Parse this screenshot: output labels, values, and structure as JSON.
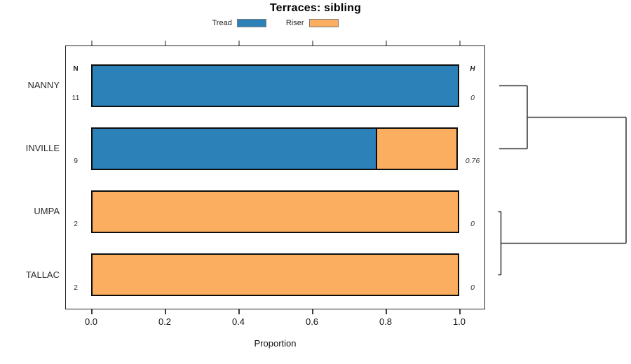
{
  "title": "Terraces: sibling",
  "legend": [
    {
      "label": "Tread",
      "color": "#2c81b9"
    },
    {
      "label": "Riser",
      "color": "#fbad60"
    }
  ],
  "axis": {
    "xlabel": "Proportion",
    "ticks": [
      "0.0",
      "0.2",
      "0.4",
      "0.6",
      "0.8",
      "1.0"
    ]
  },
  "columns": {
    "n_header": "N",
    "h_header": "H"
  },
  "rows": [
    {
      "label": "NANNY",
      "n": "11",
      "h": "0",
      "tread": 1.0,
      "riser": 0.0
    },
    {
      "label": "INVILLE",
      "n": "9",
      "h": "0.76",
      "tread": 0.7778,
      "riser": 0.2222
    },
    {
      "label": "UMPA",
      "n": "2",
      "h": "0",
      "tread": 0.0,
      "riser": 1.0
    },
    {
      "label": "TALLAC",
      "n": "2",
      "h": "0",
      "tread": 0.0,
      "riser": 1.0
    }
  ],
  "chart_data": {
    "type": "bar",
    "orientation": "horizontal",
    "stacked": true,
    "title": "Terraces: sibling",
    "xlabel": "Proportion",
    "xlim": [
      0,
      1
    ],
    "xticks": [
      0.0,
      0.2,
      0.4,
      0.6,
      0.8,
      1.0
    ],
    "categories": [
      "NANNY",
      "INVILLE",
      "UMPA",
      "TALLAC"
    ],
    "series": [
      {
        "name": "Tread",
        "color": "#2c81b9",
        "values": [
          1.0,
          0.7778,
          0.0,
          0.0
        ]
      },
      {
        "name": "Riser",
        "color": "#fbad60",
        "values": [
          0.0,
          0.2222,
          1.0,
          1.0
        ]
      }
    ],
    "sample_sizes_N": [
      11,
      9,
      2,
      2
    ],
    "heterogeneity_H": [
      0,
      0.76,
      0,
      0
    ],
    "legend_position": "top",
    "grid": false,
    "axis_ticks_on_top_and_bottom": true,
    "dendrogram": {
      "position": "right",
      "merges": [
        {
          "members": [
            "NANNY",
            "INVILLE"
          ]
        },
        {
          "members": [
            "UMPA",
            "TALLAC"
          ]
        },
        {
          "members": [
            [
              "NANNY",
              "INVILLE"
            ],
            [
              "UMPA",
              "TALLAC"
            ]
          ],
          "root": true
        }
      ]
    }
  }
}
